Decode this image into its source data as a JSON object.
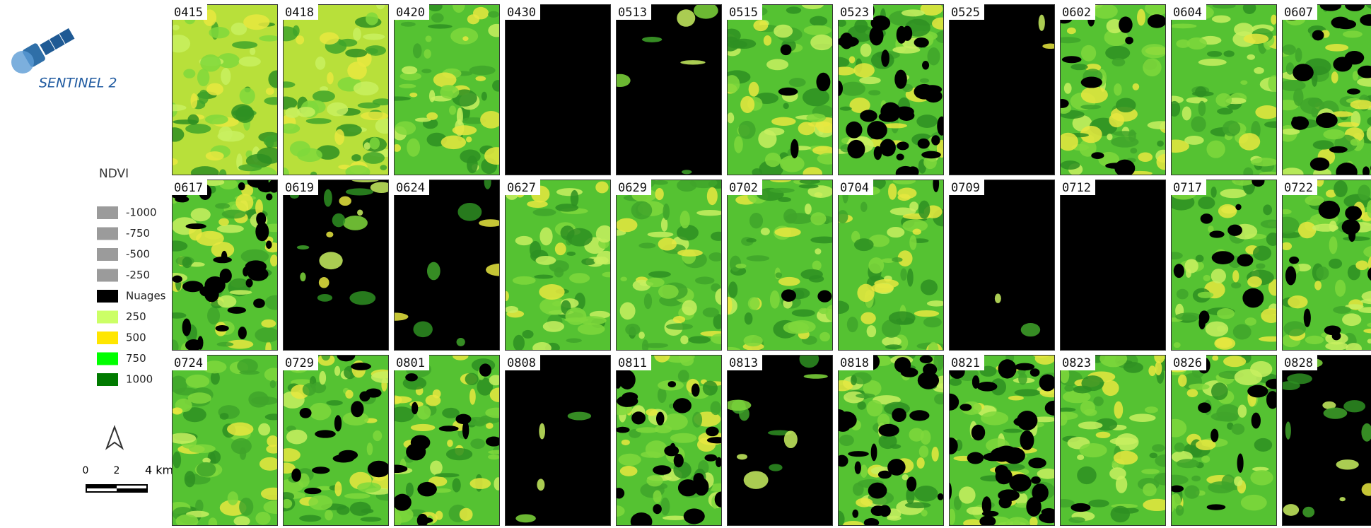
{
  "logo": {
    "text": "SENTINEL 2"
  },
  "legend": {
    "title": "NDVI",
    "items": [
      {
        "label": "-1000",
        "color": "#9b9b9b"
      },
      {
        "label": "-750",
        "color": "#9b9b9b"
      },
      {
        "label": "-500",
        "color": "#9b9b9b"
      },
      {
        "label": "-250",
        "color": "#9b9b9b"
      },
      {
        "label": "Nuages",
        "color": "#000000"
      },
      {
        "label": "250",
        "color": "#ccff66"
      },
      {
        "label": "500",
        "color": "#ffe600"
      },
      {
        "label": "750",
        "color": "#00ff00"
      },
      {
        "label": "1000",
        "color": "#007a00"
      }
    ]
  },
  "scale_bar": {
    "labels": [
      "0",
      "2",
      "4 km"
    ]
  },
  "tiles": {
    "rows": [
      [
        "0415",
        "0418",
        "0420",
        "0430",
        "0513",
        "0515",
        "0523",
        "0525",
        "0602",
        "0604",
        "0607"
      ],
      [
        "0617",
        "0619",
        "0624",
        "0627",
        "0629",
        "0702",
        "0704",
        "0709",
        "0712",
        "0717",
        "0722"
      ],
      [
        "0724",
        "0729",
        "0801",
        "0808",
        "0811",
        "0813",
        "0818",
        "0821",
        "0823",
        "0826",
        "0828"
      ]
    ]
  }
}
